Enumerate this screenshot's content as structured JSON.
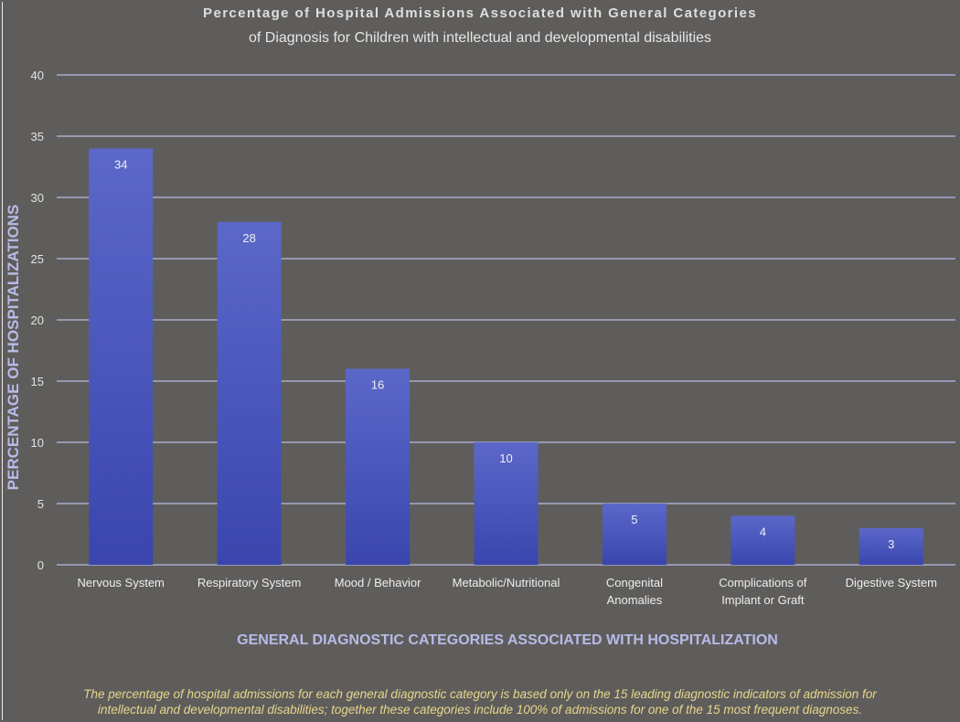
{
  "chart_data": {
    "type": "bar",
    "title": "Percentage of Hospital Admissions Associated with General Categories",
    "subtitle": "of Diagnosis for Children with intellectual and developmental disabilities",
    "categories": [
      [
        "Nervous System"
      ],
      [
        "Respiratory System"
      ],
      [
        "Mood / Behavior"
      ],
      [
        "Metabolic/Nutritional"
      ],
      [
        "Congenital",
        "Anomalies"
      ],
      [
        "Complications of",
        "Implant or Graft"
      ],
      [
        "Digestive System"
      ]
    ],
    "values": [
      34,
      28,
      16,
      10,
      5,
      4,
      3
    ],
    "xlabel": "GENERAL DIAGNOSTIC CATEGORIES ASSOCIATED WITH HOSPITALIZATION",
    "ylabel": "PERCENTAGE OF HOSPITALIZATIONS",
    "ylim": [
      0,
      40
    ],
    "yticks": [
      0,
      5,
      10,
      15,
      20,
      25,
      30,
      35,
      40
    ],
    "grid": true,
    "colors": {
      "bar_top": "#5b68c9",
      "bar_bottom": "#3a46ad",
      "grid": "#b8bce6"
    }
  },
  "footnote": {
    "line1": "The percentage of hospital admissions for each general diagnostic category is based only on the 15 leading diagnostic indicators of admission for",
    "line2": "intellectual and developmental disabilities; together these categories include 100% of admissions for one of the 15 most frequent diagnoses."
  }
}
